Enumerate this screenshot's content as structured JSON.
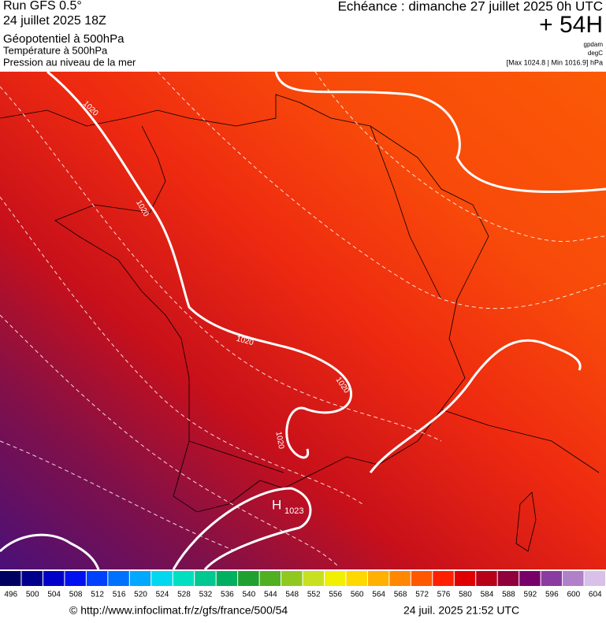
{
  "header": {
    "run": "Run GFS 0.5°",
    "date": "24 juillet 2025 18Z",
    "field1": "Géopotentiel à 500hPa",
    "field2": "Température à 500hPa",
    "field3": "Pression au niveau de la mer",
    "valid": "Echéance : dimanche 27 juillet 2025 0h UTC",
    "lead": "+ 54H",
    "unit1": "gpdam",
    "unit2": "degC",
    "range": "[Max 1024.8 | Min 1016.9] hPa"
  },
  "map": {
    "isobar_labels": [
      "1020",
      "1020",
      "1020",
      "1020",
      "1020"
    ],
    "high": "H",
    "high_value": "1023"
  },
  "colorbar": {
    "ticks": [
      496,
      500,
      504,
      508,
      512,
      516,
      520,
      524,
      528,
      532,
      536,
      540,
      544,
      548,
      552,
      556,
      560,
      564,
      568,
      572,
      576,
      580,
      584,
      588,
      592,
      596,
      600,
      604
    ],
    "colors": [
      "#000060",
      "#00008c",
      "#0000c8",
      "#0010f0",
      "#0040ff",
      "#0070ff",
      "#00a8ff",
      "#00d8f0",
      "#00e0c0",
      "#00c890",
      "#00b060",
      "#20a030",
      "#50b020",
      "#90c820",
      "#c8e020",
      "#f0f000",
      "#ffd800",
      "#ffb000",
      "#ff8800",
      "#ff5800",
      "#ff2000",
      "#e00000",
      "#b80018",
      "#90003c",
      "#78006a",
      "#8a3ca0",
      "#b080c8",
      "#d8c0e8"
    ]
  },
  "footer": {
    "url": "© http://www.infoclimat.fr/z/gfs/france/500/54",
    "stamp": "24 juil. 2025 21:52 UTC"
  }
}
